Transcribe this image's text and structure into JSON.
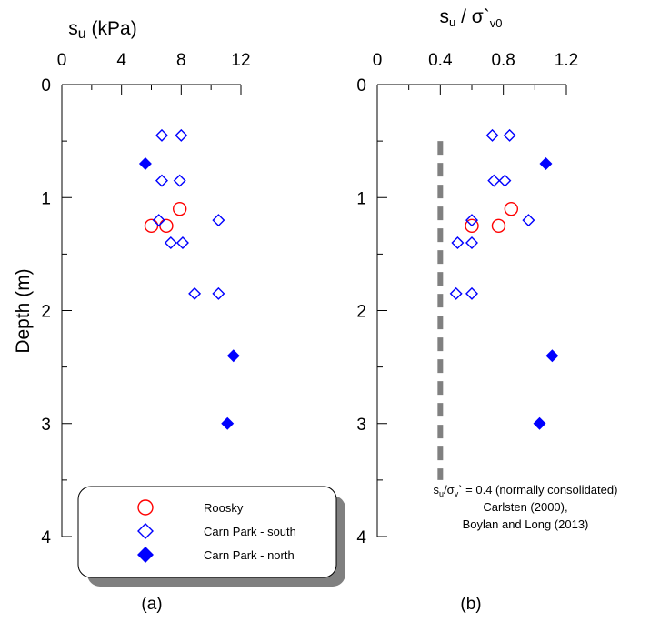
{
  "chart_data": [
    {
      "type": "scatter",
      "panel_label": "(a)",
      "title": "",
      "xlabel_main": "s",
      "xlabel_sub": "u",
      "xlabel_rest": " (kPa)",
      "ylabel": "Depth (m)",
      "xlim": [
        0,
        12
      ],
      "ylim": [
        0,
        4
      ],
      "x_ticks": [
        "0",
        "4",
        "8",
        "12"
      ],
      "y_ticks": [
        "0",
        "1",
        "2",
        "3",
        "4"
      ],
      "axis_position": "top",
      "y_inverted": true,
      "legend_placement": "bottom",
      "series": [
        {
          "name": "Roosky",
          "marker": "open-circle",
          "color": "#ff0000",
          "points": [
            [
              7.9,
              1.1
            ],
            [
              6.0,
              1.25
            ],
            [
              7.0,
              1.25
            ]
          ]
        },
        {
          "name": "Carn Park - south",
          "marker": "open-diamond",
          "color": "#0000ff",
          "points": [
            [
              6.7,
              0.45
            ],
            [
              8.0,
              0.45
            ],
            [
              6.7,
              0.85
            ],
            [
              7.9,
              0.85
            ],
            [
              6.5,
              1.2
            ],
            [
              10.5,
              1.2
            ],
            [
              7.3,
              1.4
            ],
            [
              8.1,
              1.4
            ],
            [
              8.9,
              1.85
            ],
            [
              10.5,
              1.85
            ]
          ]
        },
        {
          "name": "Carn Park - north",
          "marker": "filled-diamond",
          "color": "#0000ff",
          "points": [
            [
              5.6,
              0.7
            ],
            [
              11.5,
              2.4
            ],
            [
              11.1,
              3.0
            ]
          ]
        }
      ]
    },
    {
      "type": "scatter",
      "panel_label": "(b)",
      "title": "",
      "xlabel_parts": [
        "s",
        "u",
        " / σ`",
        "v0"
      ],
      "xlim": [
        0,
        1.2
      ],
      "ylim": [
        0,
        4
      ],
      "x_ticks": [
        "0",
        "0.4",
        "0.8",
        "1.2"
      ],
      "y_ticks": [
        "0",
        "1",
        "2",
        "3",
        "4"
      ],
      "axis_position": "top",
      "y_inverted": true,
      "reference_line": {
        "x": 0.4,
        "y_from": 0.5,
        "y_to": 3.5,
        "style": "dashed",
        "color": "#808080"
      },
      "annotation": {
        "line1_parts": [
          "s",
          "u",
          "/σ",
          "v",
          "` = 0.4 (normally consolidated)"
        ],
        "line2": "Carlsten (2000),",
        "line3": "Boylan and Long (2013)"
      },
      "series": [
        {
          "name": "Roosky",
          "marker": "open-circle",
          "color": "#ff0000",
          "points": [
            [
              0.85,
              1.1
            ],
            [
              0.6,
              1.25
            ],
            [
              0.77,
              1.25
            ]
          ]
        },
        {
          "name": "Carn Park - south",
          "marker": "open-diamond",
          "color": "#0000ff",
          "points": [
            [
              0.73,
              0.45
            ],
            [
              0.84,
              0.45
            ],
            [
              0.74,
              0.85
            ],
            [
              0.81,
              0.85
            ],
            [
              0.6,
              1.2
            ],
            [
              0.96,
              1.2
            ],
            [
              0.51,
              1.4
            ],
            [
              0.6,
              1.4
            ],
            [
              0.5,
              1.85
            ],
            [
              0.6,
              1.85
            ]
          ]
        },
        {
          "name": "Carn Park - north",
          "marker": "filled-diamond",
          "color": "#0000ff",
          "points": [
            [
              1.07,
              0.7
            ],
            [
              1.11,
              2.4
            ],
            [
              1.03,
              3.0
            ]
          ]
        }
      ]
    }
  ]
}
